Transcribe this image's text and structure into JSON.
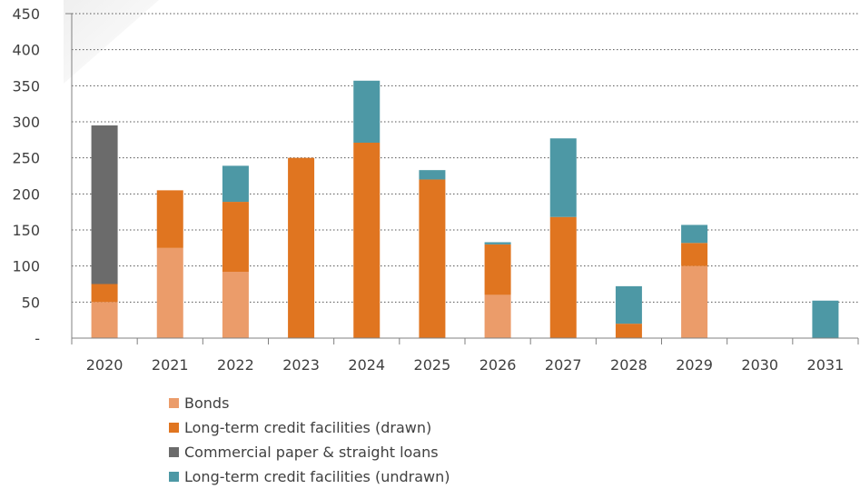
{
  "chart_data": {
    "type": "bar",
    "stacked": true,
    "categories": [
      "2020",
      "2021",
      "2022",
      "2023",
      "2024",
      "2025",
      "2026",
      "2027",
      "2028",
      "2029",
      "2030",
      "2031"
    ],
    "series": [
      {
        "name": "Bonds",
        "color": "#EB9C6A",
        "values": [
          50,
          125,
          92,
          0,
          0,
          0,
          60,
          0,
          0,
          100,
          0,
          0
        ]
      },
      {
        "name": "Long-term credit facilities (drawn)",
        "color": "#E07520",
        "values": [
          25,
          80,
          97,
          250,
          271,
          220,
          70,
          168,
          20,
          32,
          0,
          0
        ]
      },
      {
        "name": "Commercial paper & straight loans",
        "color": "#6B6B6B",
        "values": [
          220,
          0,
          0,
          0,
          0,
          0,
          0,
          0,
          0,
          0,
          0,
          0
        ]
      },
      {
        "name": "Long-term credit facilities (undrawn)",
        "color": "#4D98A5",
        "values": [
          0,
          0,
          50,
          0,
          86,
          13,
          3,
          109,
          52,
          25,
          0,
          52
        ]
      }
    ],
    "y_ticks": [
      "-",
      "50",
      "100",
      "150",
      "200",
      "250",
      "300",
      "350",
      "400",
      "450"
    ],
    "ylim": [
      0,
      450
    ],
    "grid": true,
    "legend_position": "bottom"
  }
}
